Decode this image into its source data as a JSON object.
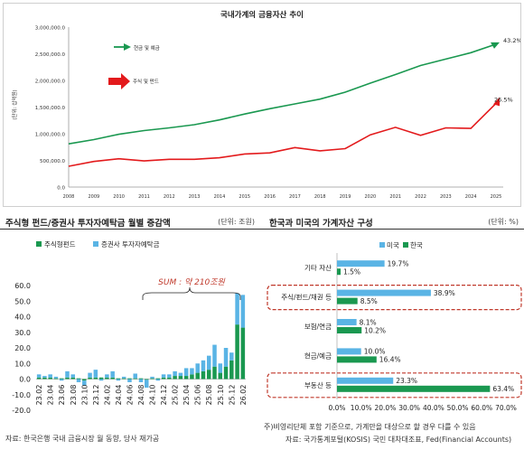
{
  "colors": {
    "green_dark": "#1a9850",
    "green_deposit": "#2ca25f",
    "light_blue": "#5ab4e5",
    "red": "#e31a1c",
    "highlight_red": "#c0392b",
    "sum_red": "#c0392b"
  },
  "top": {
    "title": "국내가계의 금융자산 추이",
    "ylabel": "(단위: 십억원)",
    "legend_deposit": "현금 및 예금",
    "legend_fund": "주식 및 펀드",
    "end_label_deposit": "43.2%",
    "end_label_fund": "26.5%"
  },
  "bottom_left": {
    "title": "주식형 펀드/증권사 투자자예탁금 월별 증감액",
    "unit": "(단위: 조원)",
    "legend_fund": "주식형펀드",
    "legend_deposit": "증권사 투자자예탁금",
    "sum_label": "SUM : 약 210조원",
    "source": "자료: 한국은행 국내 금융시장 월 동향, 당사 재가공"
  },
  "bottom_right": {
    "title": "한국과 미국의 가계자산 구성",
    "unit": "(단위: %)",
    "legend_us": "미국",
    "legend_kr": "한국",
    "footnote": "주)비영리단체 포함 기준으로, 가계만을 대상으로 할 경우 다를 수 있음",
    "source": "자료: 국가통계포털(KOSIS) 국민 대차대조표, Fed(Financial Accounts)"
  },
  "chart_data": [
    {
      "type": "line",
      "title": "국내가계의 금융자산 추이",
      "ylabel": "(단위: 십억원)",
      "x": [
        "2008",
        "2009",
        "2010",
        "2011",
        "2012",
        "2013",
        "2014",
        "2015",
        "2016",
        "2017",
        "2018",
        "2019",
        "2020",
        "2021",
        "2022",
        "2023",
        "2024",
        "2025"
      ],
      "ylim": [
        0,
        3000000
      ],
      "yticks": [
        0,
        500000,
        1000000,
        1500000,
        2000000,
        2500000,
        3000000
      ],
      "ytick_labels": [
        "0.0",
        "500,000.0",
        "1,000,000.0",
        "1,500,000.0",
        "2,000,000.0",
        "2,500,000.0",
        "3,000,000.0"
      ],
      "grid": false,
      "series": [
        {
          "name": "현금 및 예금",
          "color": "#1a9850",
          "values": [
            810000,
            890000,
            990000,
            1060000,
            1110000,
            1170000,
            1260000,
            1370000,
            1470000,
            1560000,
            1650000,
            1780000,
            1950000,
            2110000,
            2280000,
            2400000,
            2520000,
            2680000
          ]
        },
        {
          "name": "주식 및 펀드",
          "color": "#e31a1c",
          "values": [
            390000,
            480000,
            530000,
            490000,
            520000,
            520000,
            550000,
            620000,
            640000,
            740000,
            680000,
            720000,
            980000,
            1120000,
            970000,
            1110000,
            1100000,
            1570000
          ]
        }
      ]
    },
    {
      "type": "bar",
      "title": "주식형 펀드/증권사 투자자예탁금 월별 증감액",
      "unit": "(단위: 조원)",
      "stacked": true,
      "ylim": [
        -20,
        60
      ],
      "yticks": [
        -20,
        -10,
        0,
        10,
        20,
        30,
        40,
        50,
        60
      ],
      "ytick_labels": [
        "-20.0",
        "-10.0",
        "0.0",
        "10.0",
        "20.0",
        "30.0",
        "40.0",
        "50.0",
        "60.0"
      ],
      "categories": [
        "23.02",
        "23.03",
        "23.04",
        "23.05",
        "23.06",
        "23.07",
        "23.08",
        "23.09",
        "23.10",
        "23.11",
        "23.12",
        "24.01",
        "24.02",
        "24.03",
        "24.04",
        "24.05",
        "24.06",
        "24.07",
        "24.08",
        "24.09",
        "24.10",
        "24.11",
        "24.12",
        "25.01",
        "25.02",
        "25.03",
        "25.04",
        "25.05",
        "25.06",
        "25.07",
        "25.08",
        "25.09",
        "25.10",
        "25.11",
        "25.12",
        "26.01",
        "26.02"
      ],
      "tick_labels": [
        "23.02",
        "23.04",
        "23.06",
        "23.08",
        "23.10",
        "23.12",
        "24.02",
        "24.04",
        "24.06",
        "24.08",
        "24.10",
        "24.12",
        "25.02",
        "25.04",
        "25.06",
        "25.08",
        "25.10",
        "25.12",
        "26.02"
      ],
      "series": [
        {
          "name": "주식형펀드",
          "color": "#1a9850",
          "values": [
            1,
            1,
            1,
            0.5,
            0.5,
            1,
            1,
            0.5,
            -1,
            1,
            1,
            1,
            1,
            1,
            0.5,
            0.5,
            0.5,
            0.5,
            0.5,
            -0.5,
            0.5,
            0.5,
            1,
            1,
            2,
            2,
            2,
            3,
            4,
            5,
            6,
            8,
            4,
            8,
            12,
            35,
            33
          ]
        },
        {
          "name": "증권사 투자자예탁금",
          "color": "#5ab4e5",
          "values": [
            2,
            1,
            2,
            1,
            -1,
            4,
            2,
            -2,
            -3,
            3,
            5,
            -1,
            2,
            4,
            -1,
            1,
            -2,
            3,
            -2,
            -5,
            1,
            -1,
            2,
            2,
            3,
            2,
            5,
            4,
            6,
            7,
            9,
            14,
            6,
            12,
            5,
            20,
            21
          ]
        }
      ],
      "annotations": [
        "SUM : 약 210조원"
      ]
    },
    {
      "type": "bar",
      "orientation": "horizontal",
      "title": "한국과 미국의 가계자산 구성",
      "unit": "(단위: %)",
      "categories": [
        "기타 자산",
        "주식/펀드/채권 등",
        "보험/연금",
        "현금/예금",
        "부동산 등"
      ],
      "xlim": [
        0,
        70
      ],
      "xticks": [
        0,
        10,
        20,
        30,
        40,
        50,
        60,
        70
      ],
      "xtick_labels": [
        "0.0%",
        "10.0%",
        "20.0%",
        "30.0%",
        "40.0%",
        "50.0%",
        "60.0%",
        "70.0%"
      ],
      "series": [
        {
          "name": "미국",
          "color": "#5ab4e5",
          "values": [
            19.7,
            38.9,
            8.1,
            10.0,
            23.3
          ],
          "labels": [
            "19.7%",
            "38.9%",
            "8.1%",
            "10.0%",
            "23.3%"
          ]
        },
        {
          "name": "한국",
          "color": "#1a9850",
          "values": [
            1.5,
            8.5,
            10.2,
            16.4,
            63.4
          ],
          "labels": [
            "1.5%",
            "8.5%",
            "10.2%",
            "16.4%",
            "63.4%"
          ]
        }
      ],
      "highlighted": [
        "주식/펀드/채권 등",
        "부동산 등"
      ]
    }
  ]
}
